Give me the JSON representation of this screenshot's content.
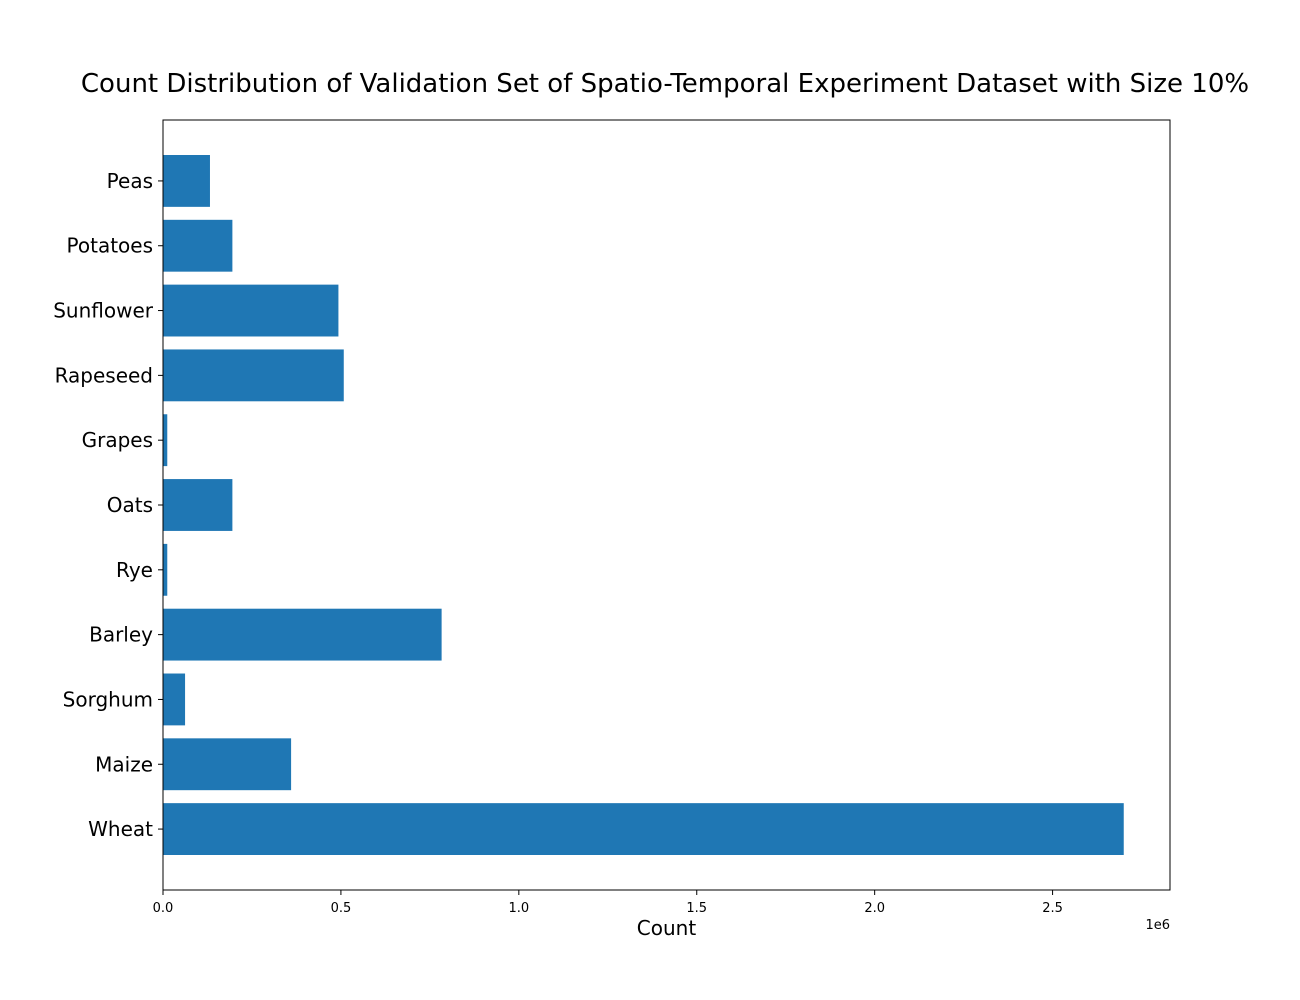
{
  "chart_data": {
    "type": "bar",
    "orientation": "horizontal",
    "title": "Count Distribution of Validation Set of Spatio-Temporal Experiment Dataset with Size 10%",
    "xlabel": "Count",
    "ylabel": "",
    "x_offset_label": "1e6",
    "xlim": [
      0,
      2830000
    ],
    "x_ticks": [
      0,
      500000,
      1000000,
      1500000,
      2000000,
      2500000
    ],
    "x_tick_labels": [
      "0.0",
      "0.5",
      "1.0",
      "1.5",
      "2.0",
      "2.5"
    ],
    "grid": false,
    "bar_color": "#1f77b4",
    "categories": [
      "Wheat",
      "Maize",
      "Sorghum",
      "Barley",
      "Rye",
      "Oats",
      "Grapes",
      "Rapeseed",
      "Sunflower",
      "Potatoes",
      "Peas"
    ],
    "values": [
      2700000,
      360000,
      62000,
      783000,
      12000,
      195000,
      12000,
      508000,
      493000,
      195000,
      132000
    ]
  }
}
